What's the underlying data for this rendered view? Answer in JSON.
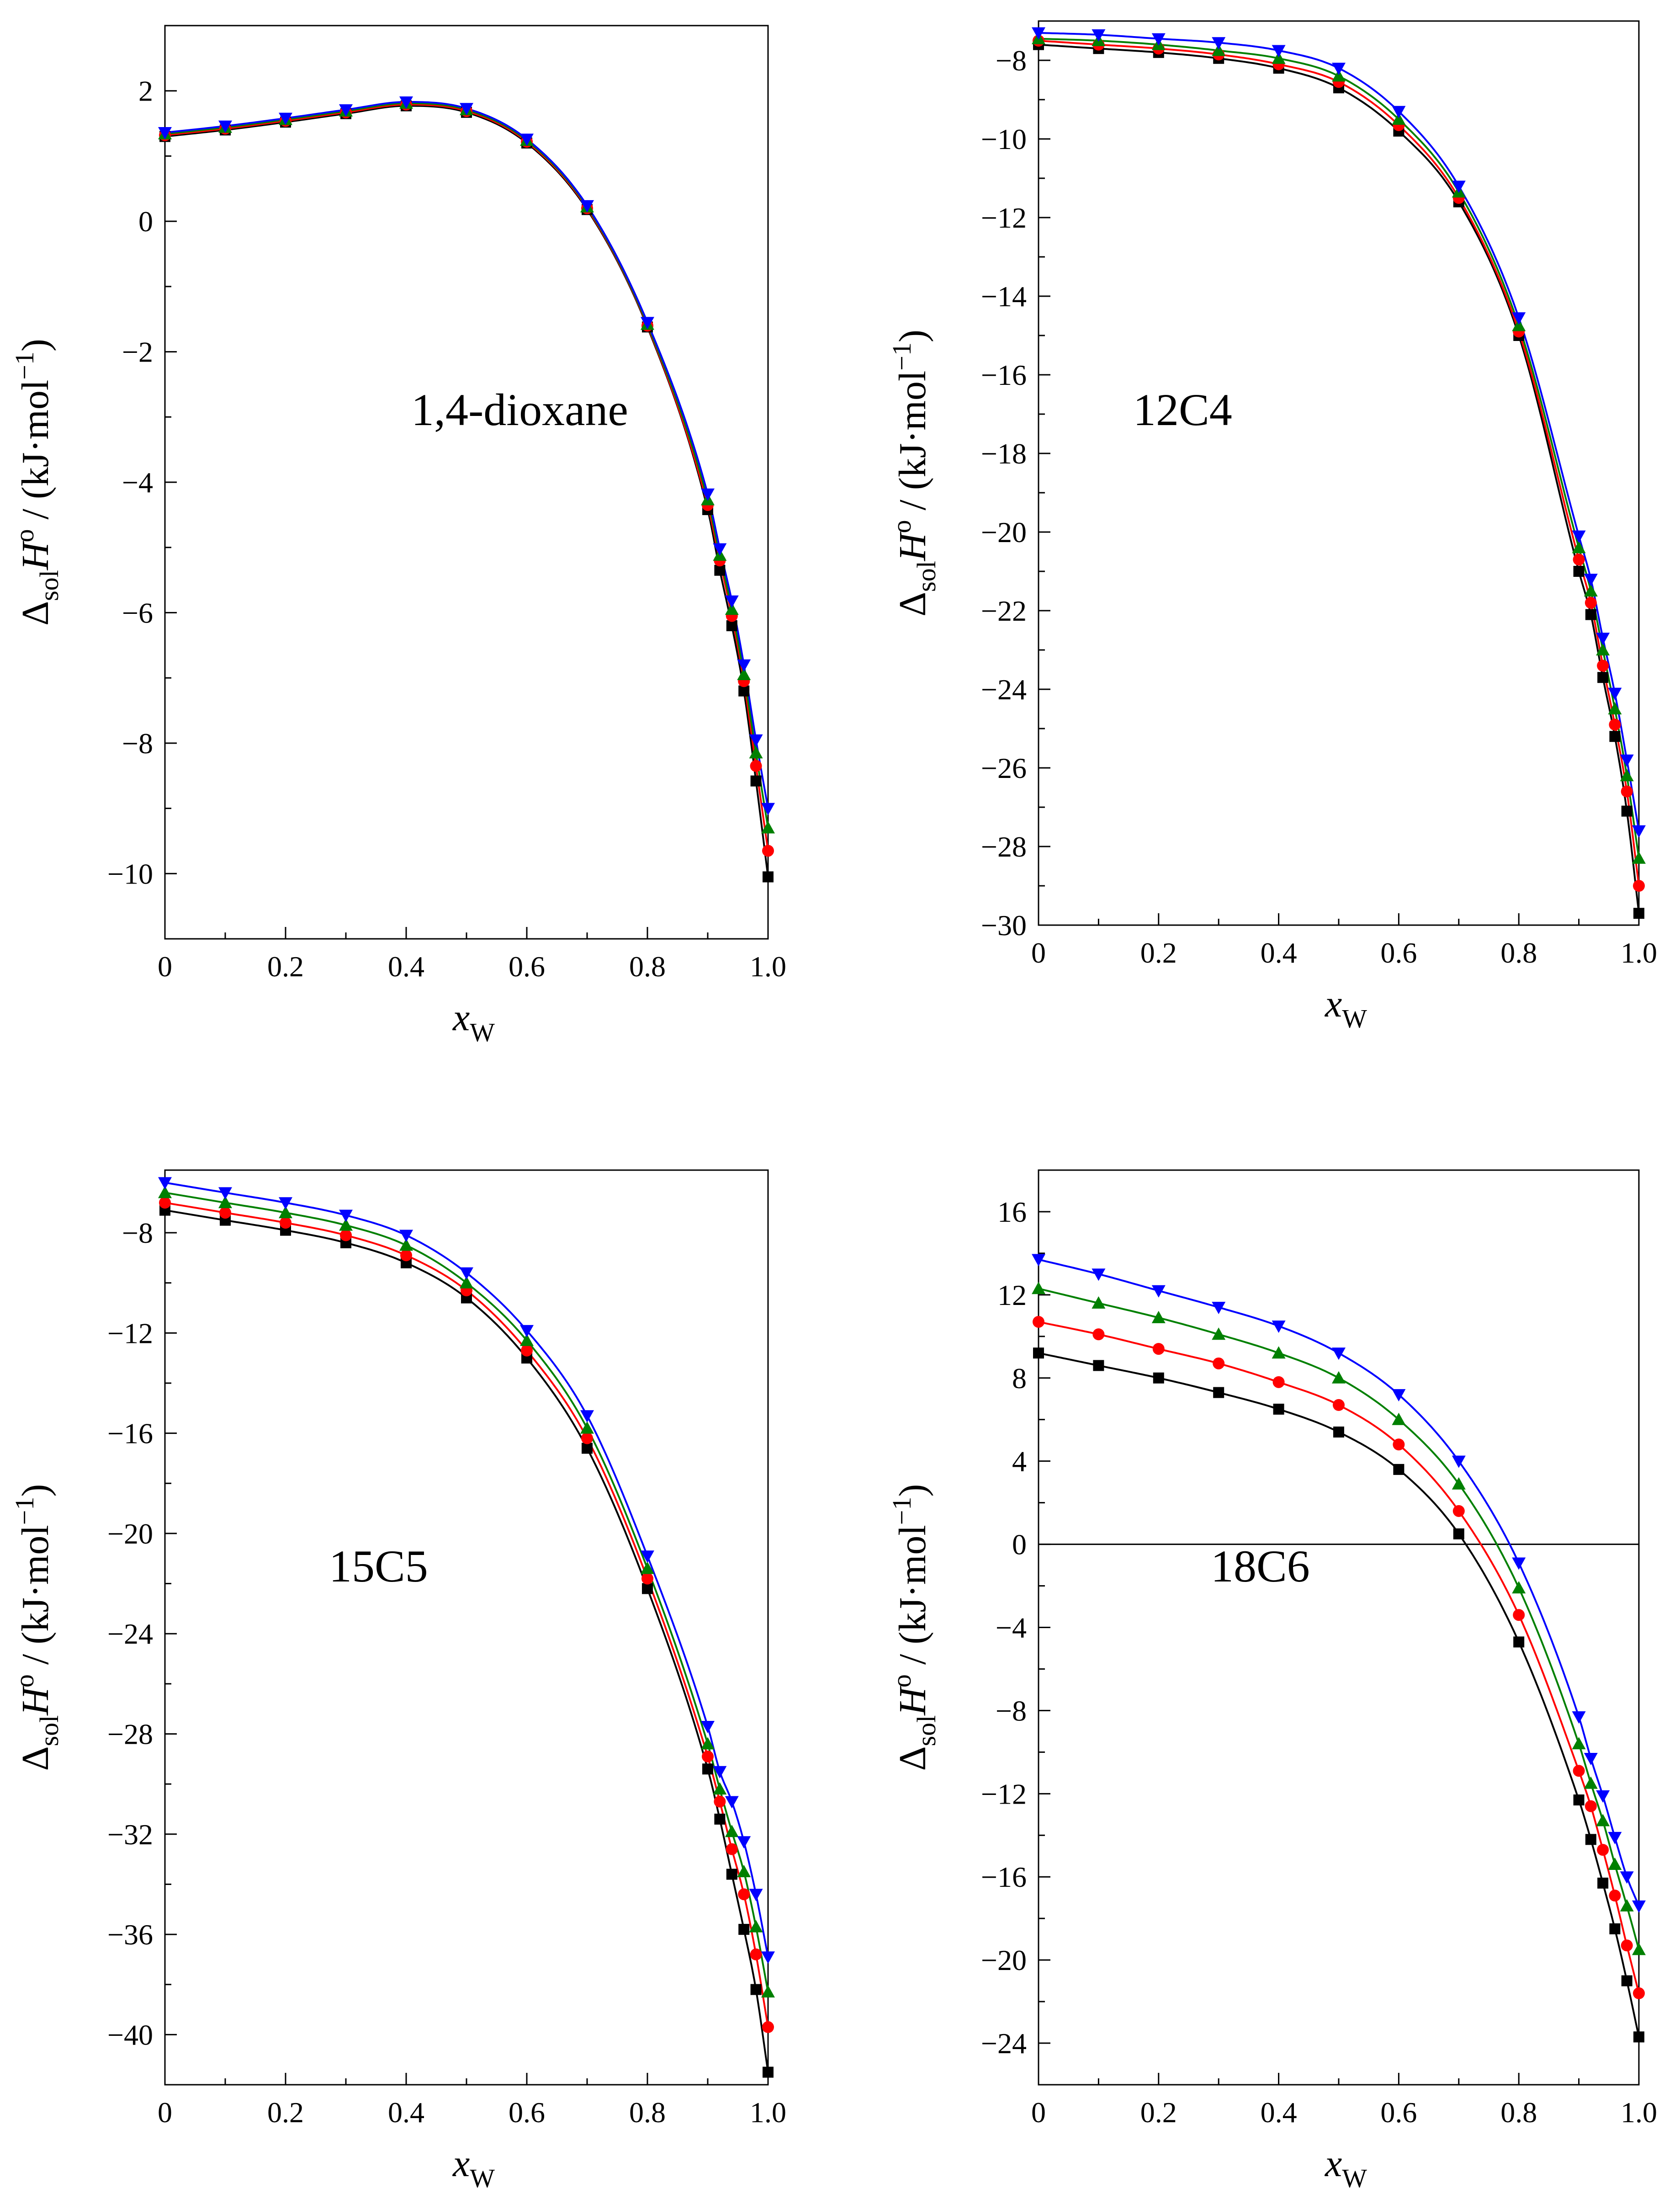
{
  "chart_data": [
    {
      "type": "line",
      "title": "",
      "panel_label": "1,4-dioxane",
      "xlabel": {
        "main": "x",
        "sub": "W"
      },
      "ylabel": {
        "delta": "Δ",
        "sub": "sol",
        "h": "H",
        "sup": "o",
        "unit": "/ (kJ·mol",
        "unit_sup": "−1",
        "close": ")"
      },
      "xlim": [
        0,
        1.0
      ],
      "ylim": [
        -11,
        3
      ],
      "xticks": [
        0,
        0.2,
        0.4,
        0.6,
        0.8,
        1.0
      ],
      "xtick_labels": [
        "0",
        "0.2",
        "0.4",
        "0.6",
        "0.8",
        "1.0"
      ],
      "yticks": [
        2,
        0,
        -2,
        -4,
        -6,
        -8,
        -10
      ],
      "ytick_labels": [
        "2",
        "0",
        "−2",
        "−4",
        "−6",
        "−8",
        "−10"
      ],
      "x": [
        0,
        0.1,
        0.2,
        0.3,
        0.4,
        0.5,
        0.6,
        0.7,
        0.8,
        0.9,
        0.92,
        0.94,
        0.96,
        0.98,
        1.0
      ],
      "series": [
        {
          "name": "black-square",
          "color": "#000000",
          "marker": "square",
          "values": [
            1.3,
            1.4,
            1.52,
            1.65,
            1.77,
            1.67,
            1.2,
            0.18,
            -1.62,
            -4.42,
            -5.35,
            -6.2,
            -7.2,
            -8.58,
            -10.05
          ]
        },
        {
          "name": "red-circle",
          "color": "#ff0000",
          "marker": "circle",
          "values": [
            1.32,
            1.42,
            1.54,
            1.67,
            1.79,
            1.69,
            1.22,
            0.2,
            -1.6,
            -4.35,
            -5.2,
            -6.05,
            -7.05,
            -8.35,
            -9.65
          ]
        },
        {
          "name": "green-triangle-up",
          "color": "#008000",
          "marker": "triangle-up",
          "values": [
            1.34,
            1.44,
            1.56,
            1.69,
            1.81,
            1.71,
            1.24,
            0.22,
            -1.58,
            -4.27,
            -5.12,
            -5.95,
            -6.95,
            -8.15,
            -9.3
          ]
        },
        {
          "name": "blue-triangle-down",
          "color": "#0000ff",
          "marker": "triangle-down",
          "values": [
            1.36,
            1.46,
            1.58,
            1.71,
            1.83,
            1.73,
            1.26,
            0.24,
            -1.55,
            -4.18,
            -5.02,
            -5.82,
            -6.8,
            -7.95,
            -9.0
          ]
        }
      ]
    },
    {
      "type": "line",
      "title": "",
      "panel_label": "12C4",
      "xlabel": {
        "main": "x",
        "sub": "W"
      },
      "ylabel": {
        "delta": "Δ",
        "sub": "sol",
        "h": "H",
        "sup": "o",
        "unit": "/ (kJ·mol",
        "unit_sup": "−1",
        "close": ")"
      },
      "xlim": [
        0,
        1.0
      ],
      "ylim": [
        -30,
        -7
      ],
      "xticks": [
        0,
        0.2,
        0.4,
        0.6,
        0.8,
        1.0
      ],
      "xtick_labels": [
        "0",
        "0.2",
        "0.4",
        "0.6",
        "0.8",
        "1.0"
      ],
      "yticks": [
        -8,
        -10,
        -12,
        -14,
        -16,
        -18,
        -20,
        -22,
        -24,
        -26,
        -28,
        -30
      ],
      "ytick_labels": [
        "−8",
        "−10",
        "−12",
        "−14",
        "−16",
        "−18",
        "−20",
        "−22",
        "−24",
        "−26",
        "−28",
        "−30"
      ],
      "x": [
        0,
        0.1,
        0.2,
        0.3,
        0.4,
        0.5,
        0.6,
        0.7,
        0.8,
        0.9,
        0.92,
        0.94,
        0.96,
        0.98,
        1.0
      ],
      "series": [
        {
          "name": "black-square",
          "color": "#000000",
          "marker": "square",
          "values": [
            -7.6,
            -7.7,
            -7.8,
            -7.95,
            -8.2,
            -8.7,
            -9.8,
            -11.6,
            -15.0,
            -21.0,
            -22.1,
            -23.7,
            -25.2,
            -27.1,
            -29.7
          ]
        },
        {
          "name": "red-circle",
          "color": "#ff0000",
          "marker": "circle",
          "values": [
            -7.5,
            -7.6,
            -7.7,
            -7.85,
            -8.1,
            -8.55,
            -9.65,
            -11.5,
            -14.9,
            -20.7,
            -21.8,
            -23.4,
            -24.9,
            -26.6,
            -29.0
          ]
        },
        {
          "name": "green-triangle-up",
          "color": "#008000",
          "marker": "triangle-up",
          "values": [
            -7.45,
            -7.5,
            -7.6,
            -7.75,
            -7.95,
            -8.4,
            -9.5,
            -11.35,
            -14.75,
            -20.4,
            -21.5,
            -23.0,
            -24.5,
            -26.2,
            -28.3
          ]
        },
        {
          "name": "blue-triangle-down",
          "color": "#0000ff",
          "marker": "triangle-down",
          "values": [
            -7.3,
            -7.35,
            -7.45,
            -7.55,
            -7.75,
            -8.2,
            -9.3,
            -11.2,
            -14.55,
            -20.1,
            -21.2,
            -22.7,
            -24.1,
            -25.8,
            -27.6
          ]
        }
      ]
    },
    {
      "type": "line",
      "title": "",
      "panel_label": "15C5",
      "xlabel": {
        "main": "x",
        "sub": "W"
      },
      "ylabel": {
        "delta": "Δ",
        "sub": "sol",
        "h": "H",
        "sup": "o",
        "unit": "/ (kJ·mol",
        "unit_sup": "−1",
        "close": ")"
      },
      "xlim": [
        0,
        1.0
      ],
      "ylim": [
        -42,
        -5.5
      ],
      "xticks": [
        0,
        0.2,
        0.4,
        0.6,
        0.8,
        1.0
      ],
      "xtick_labels": [
        "0",
        "0.2",
        "0.4",
        "0.6",
        "0.8",
        "1.0"
      ],
      "yticks": [
        -8,
        -12,
        -16,
        -20,
        -24,
        -28,
        -32,
        -36,
        -40
      ],
      "ytick_labels": [
        "−8",
        "−12",
        "−16",
        "−20",
        "−24",
        "−28",
        "−32",
        "−36",
        "−40"
      ],
      "x": [
        0,
        0.1,
        0.2,
        0.3,
        0.4,
        0.5,
        0.6,
        0.7,
        0.8,
        0.9,
        0.92,
        0.94,
        0.96,
        0.98,
        1.0
      ],
      "series": [
        {
          "name": "black-square",
          "color": "#000000",
          "marker": "square",
          "values": [
            -7.1,
            -7.5,
            -7.9,
            -8.4,
            -9.2,
            -10.6,
            -13.0,
            -16.6,
            -22.2,
            -29.4,
            -31.4,
            -33.6,
            -35.8,
            -38.2,
            -41.5
          ]
        },
        {
          "name": "red-circle",
          "color": "#ff0000",
          "marker": "circle",
          "values": [
            -6.8,
            -7.2,
            -7.6,
            -8.1,
            -8.9,
            -10.3,
            -12.7,
            -16.2,
            -21.8,
            -28.9,
            -30.7,
            -32.6,
            -34.4,
            -36.8,
            -39.7
          ]
        },
        {
          "name": "green-triangle-up",
          "color": "#008000",
          "marker": "triangle-up",
          "values": [
            -6.4,
            -6.8,
            -7.2,
            -7.7,
            -8.5,
            -10.0,
            -12.3,
            -15.8,
            -21.4,
            -28.4,
            -30.2,
            -31.9,
            -33.5,
            -35.7,
            -38.3
          ]
        },
        {
          "name": "blue-triangle-down",
          "color": "#0000ff",
          "marker": "triangle-down",
          "values": [
            -6.0,
            -6.4,
            -6.8,
            -7.3,
            -8.1,
            -9.6,
            -11.9,
            -15.3,
            -20.9,
            -27.7,
            -29.5,
            -30.7,
            -32.3,
            -34.4,
            -36.9
          ]
        }
      ]
    },
    {
      "type": "line",
      "title": "",
      "panel_label": "18C6",
      "xlabel": {
        "main": "x",
        "sub": "W"
      },
      "ylabel": {
        "delta": "Δ",
        "sub": "sol",
        "h": "H",
        "sup": "o",
        "unit": "/ (kJ·mol",
        "unit_sup": "−1",
        "close": ")"
      },
      "xlim": [
        0,
        1.0
      ],
      "ylim": [
        -26,
        18
      ],
      "xticks": [
        0,
        0.2,
        0.4,
        0.6,
        0.8,
        1.0
      ],
      "xtick_labels": [
        "0",
        "0.2",
        "0.4",
        "0.6",
        "0.8",
        "1.0"
      ],
      "yticks": [
        16,
        12,
        8,
        4,
        0,
        -4,
        -8,
        -12,
        -16,
        -20,
        -24
      ],
      "ytick_labels": [
        "16",
        "12",
        "8",
        "4",
        "0",
        "−4",
        "−8",
        "−12",
        "−16",
        "−20",
        "−24"
      ],
      "zero_line": true,
      "x": [
        0,
        0.1,
        0.2,
        0.3,
        0.4,
        0.5,
        0.6,
        0.7,
        0.8,
        0.9,
        0.92,
        0.94,
        0.96,
        0.98,
        1.0
      ],
      "series": [
        {
          "name": "black-square",
          "color": "#000000",
          "marker": "square",
          "values": [
            9.2,
            8.6,
            8.0,
            7.3,
            6.5,
            5.4,
            3.6,
            0.5,
            -4.7,
            -12.3,
            -14.2,
            -16.3,
            -18.5,
            -21.0,
            -23.7
          ]
        },
        {
          "name": "red-circle",
          "color": "#ff0000",
          "marker": "circle",
          "values": [
            10.7,
            10.1,
            9.4,
            8.7,
            7.8,
            6.7,
            4.8,
            1.6,
            -3.4,
            -10.9,
            -12.6,
            -14.7,
            -16.9,
            -19.3,
            -21.6
          ]
        },
        {
          "name": "green-triangle-up",
          "color": "#008000",
          "marker": "triangle-up",
          "values": [
            12.3,
            11.6,
            10.9,
            10.1,
            9.2,
            8.0,
            6.0,
            2.9,
            -2.1,
            -9.6,
            -11.5,
            -13.3,
            -15.4,
            -17.4,
            -19.5
          ]
        },
        {
          "name": "blue-triangle-down",
          "color": "#0000ff",
          "marker": "triangle-down",
          "values": [
            13.7,
            13.0,
            12.2,
            11.4,
            10.5,
            9.2,
            7.2,
            4.0,
            -0.9,
            -8.3,
            -10.3,
            -12.1,
            -14.1,
            -16.0,
            -17.4
          ]
        }
      ]
    }
  ]
}
